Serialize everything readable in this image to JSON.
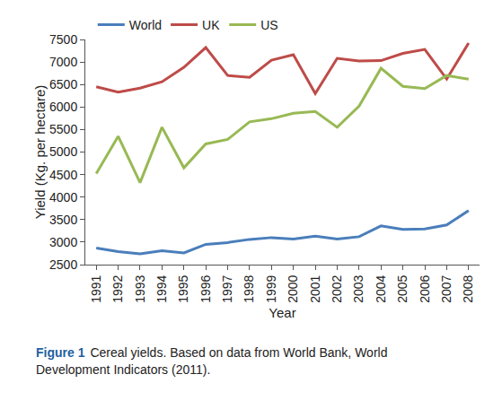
{
  "chart_data": {
    "type": "line",
    "x_label": "Year",
    "y_label": "Yield (Kg. per hectare)",
    "caption_label": "Figure 1",
    "caption": "Cereal yields. Based on data from World Bank, World Development Indicators (2011).",
    "categories": [
      "1991",
      "1992",
      "1993",
      "1994",
      "1995",
      "1996",
      "1997",
      "1998",
      "1999",
      "2000",
      "2001",
      "2002",
      "2003",
      "2004",
      "2005",
      "2006",
      "2007",
      "2008"
    ],
    "series": [
      {
        "name": "World",
        "color": "#4a7ebb",
        "values": [
          2870,
          2790,
          2740,
          2810,
          2760,
          2950,
          2990,
          3060,
          3100,
          3070,
          3130,
          3070,
          3120,
          3360,
          3280,
          3290,
          3380,
          3700
        ]
      },
      {
        "name": "UK",
        "color": "#be4b48",
        "values": [
          6450,
          6330,
          6420,
          6560,
          6880,
          7320,
          6700,
          6660,
          7040,
          7160,
          6300,
          7080,
          7020,
          7030,
          7190,
          7280,
          6620,
          7420
        ]
      },
      {
        "name": "US",
        "color": "#98b954",
        "values": [
          4520,
          5350,
          4320,
          5550,
          4650,
          5180,
          5280,
          5670,
          5740,
          5860,
          5900,
          5550,
          6020,
          6860,
          6460,
          6410,
          6700,
          6620
        ]
      }
    ],
    "ylim": [
      2500,
      7500
    ],
    "yticks": [
      2500,
      3000,
      3500,
      4000,
      4500,
      5000,
      5500,
      6000,
      6500,
      7000,
      7500
    ],
    "grid": false,
    "legend": "top"
  }
}
